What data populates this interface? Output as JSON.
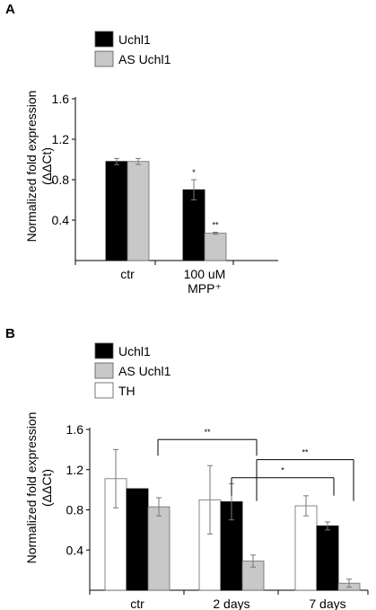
{
  "chart_data": [
    {
      "panel": "A",
      "type": "bar",
      "ylabel_line1": "Normalized fold expression",
      "ylabel_line2": "(ΔΔCt)",
      "categories": [
        {
          "line1": "ctr",
          "line2": ""
        },
        {
          "line1": "100 uM",
          "line2": "MPP⁺"
        }
      ],
      "ylim": [
        0,
        1.6
      ],
      "yticks": [
        {
          "value": 0.4,
          "label": "0.4"
        },
        {
          "value": 0.8,
          "label": "0.8"
        },
        {
          "value": 1.2,
          "label": "1.2"
        },
        {
          "value": 1.6,
          "label": "1.6"
        }
      ],
      "grid": false,
      "legend_position": "top-left",
      "series": [
        {
          "name": "Uchl1",
          "color": "#000000",
          "values": [
            0.98,
            0.7
          ],
          "errors": [
            0.03,
            0.1
          ],
          "stars": [
            "",
            "*"
          ]
        },
        {
          "name": "AS Uchl1",
          "color": "#c8c8c8",
          "values": [
            0.98,
            0.27
          ],
          "errors": [
            0.03,
            0.01
          ],
          "stars": [
            "",
            "**"
          ]
        }
      ]
    },
    {
      "panel": "B",
      "type": "bar",
      "ylabel_line1": "Normalized fold expression",
      "ylabel_line2": "(ΔΔCt)",
      "categories": [
        {
          "line1": "ctr",
          "line2": ""
        },
        {
          "line1": "2 days",
          "line2": ""
        },
        {
          "line1": "7 days",
          "line2": ""
        }
      ],
      "ylim": [
        0,
        1.6
      ],
      "yticks": [
        {
          "value": 0.4,
          "label": "0.4"
        },
        {
          "value": 0.8,
          "label": "0.8"
        },
        {
          "value": 1.2,
          "label": "1.2"
        },
        {
          "value": 1.6,
          "label": "1.6"
        }
      ],
      "grid": false,
      "legend_position": "top-left",
      "series": [
        {
          "name": "TH",
          "color": "#ffffff",
          "values": [
            1.11,
            0.9,
            0.84
          ],
          "errors": [
            0.29,
            0.34,
            0.1
          ]
        },
        {
          "name": "Uchl1",
          "color": "#000000",
          "values": [
            1.01,
            0.88,
            0.64
          ],
          "errors": [
            0.0,
            0.18,
            0.04
          ]
        },
        {
          "name": "AS Uchl1",
          "color": "#c8c8c8",
          "values": [
            0.83,
            0.29,
            0.07
          ],
          "errors": [
            0.09,
            0.06,
            0.04
          ]
        }
      ],
      "legend_order": [
        "Uchl1",
        "AS Uchl1",
        "TH"
      ],
      "significance_brackets": [
        {
          "from_category": 0,
          "to_category": 1,
          "y_value": 1.5,
          "label": "**"
        },
        {
          "from_category": 1,
          "to_category": 2,
          "y_value": 1.3,
          "label": "**"
        },
        {
          "from_category": 1,
          "to_category": 2,
          "y_value": 1.12,
          "label": "*"
        }
      ]
    }
  ]
}
